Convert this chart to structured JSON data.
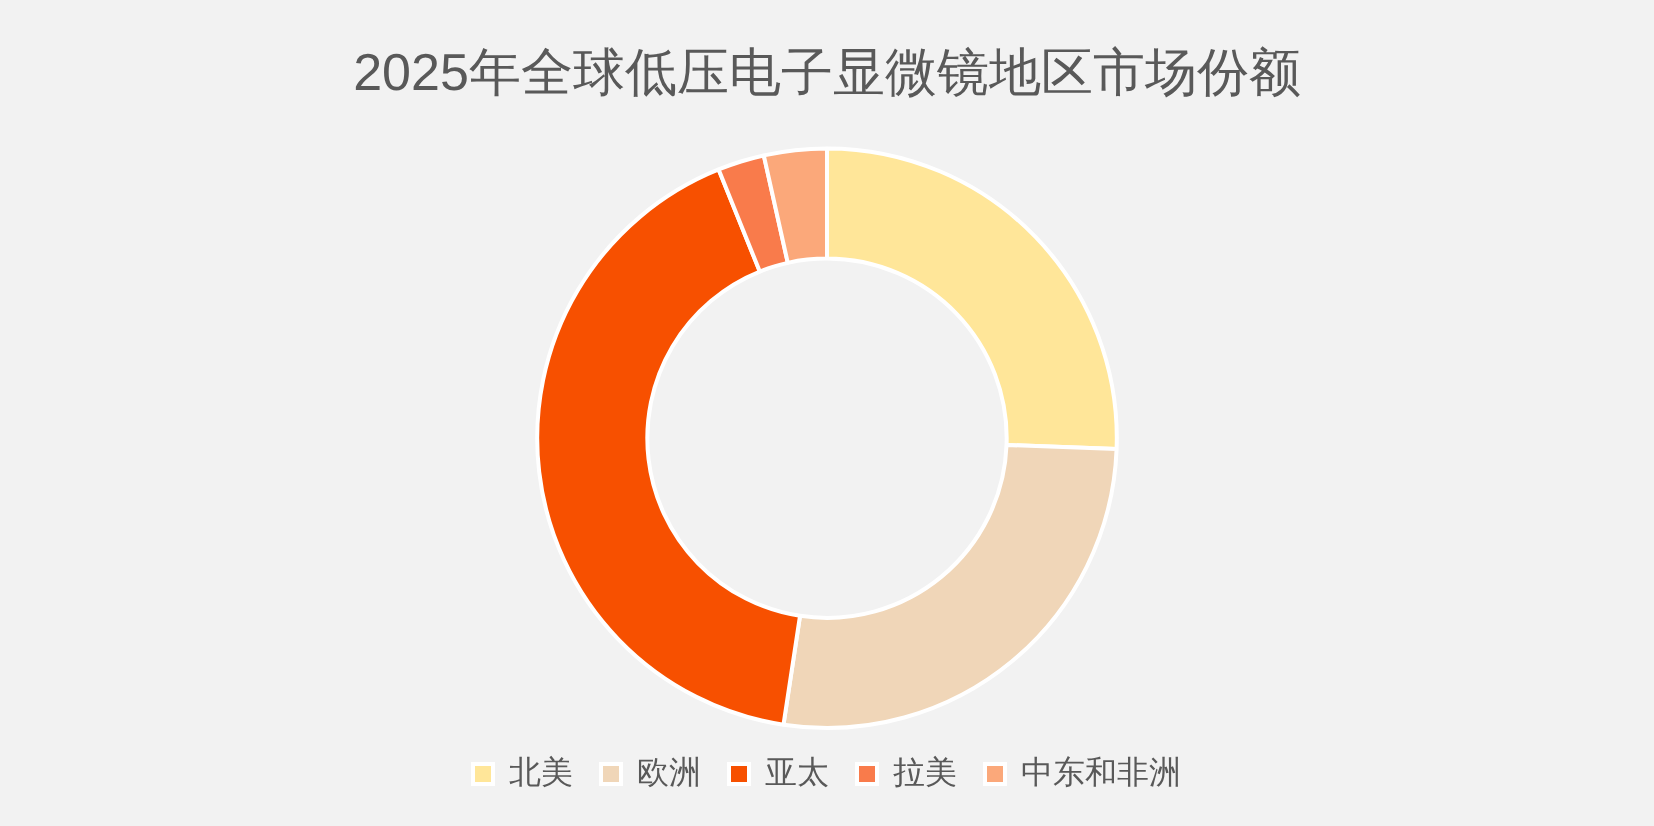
{
  "chart_data": {
    "type": "donut",
    "title": "2025年全球低压电子显微镜地区市场份额",
    "categories": [
      "北美",
      "欧洲",
      "亚太",
      "拉美",
      "中东和非洲"
    ],
    "values": [
      25.6,
      26.8,
      41.5,
      2.6,
      3.5
    ],
    "colors": [
      "#ffe699",
      "#f0d6b8",
      "#f75000",
      "#f97b4b",
      "#fba87a"
    ],
    "legend": "bottom"
  }
}
